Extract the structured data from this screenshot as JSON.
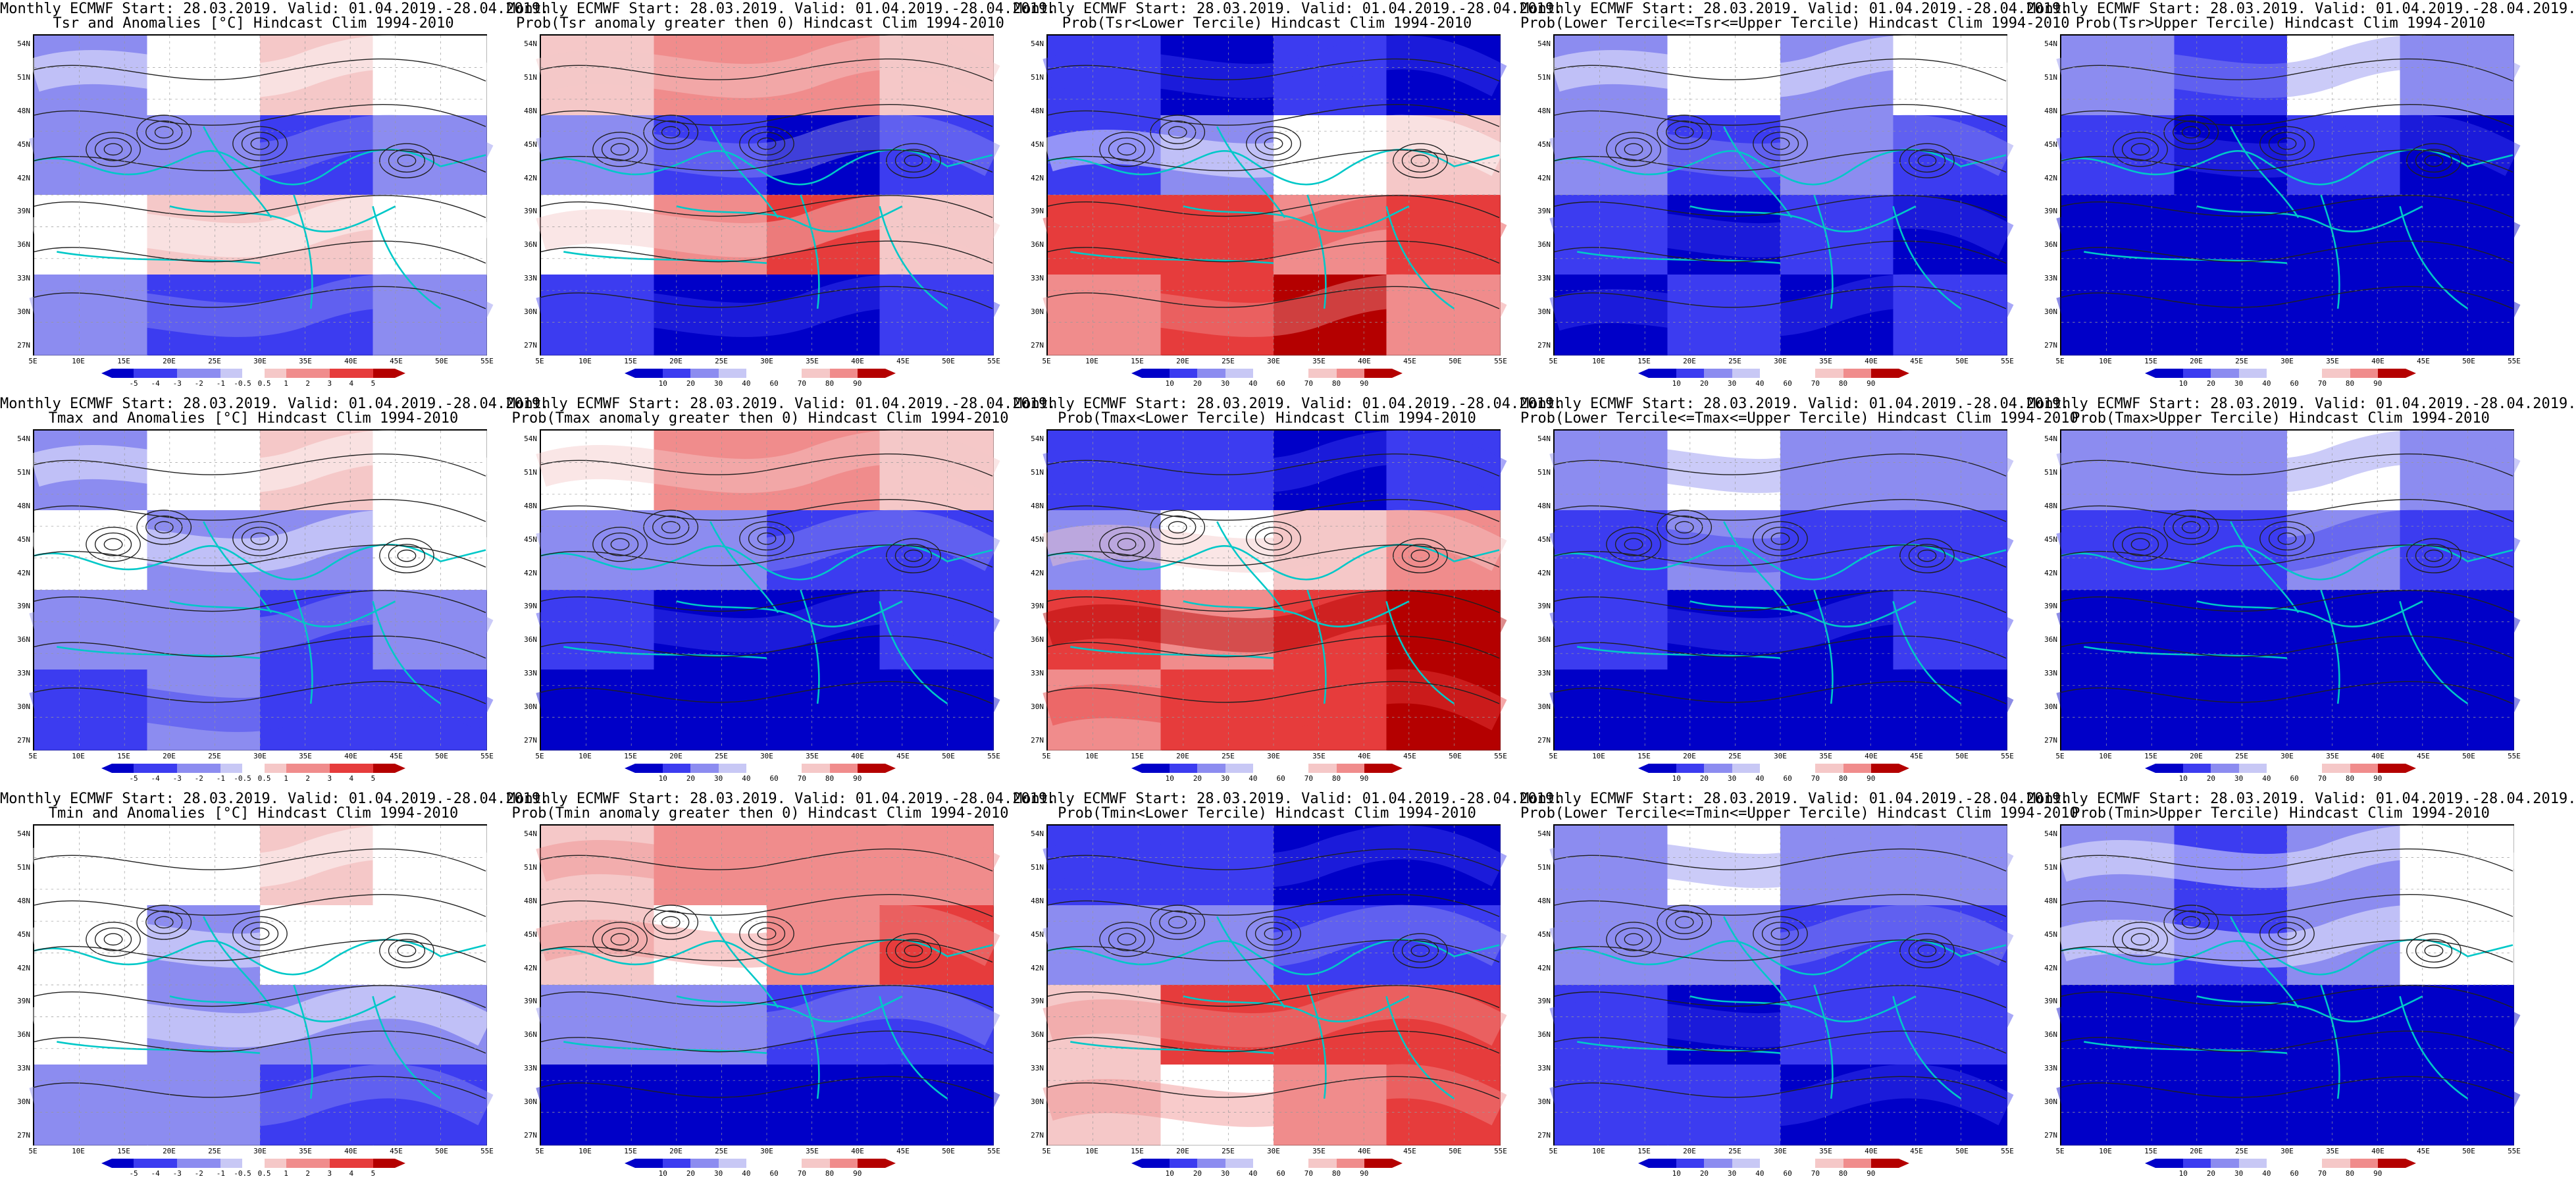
{
  "colors": {
    "deep_blue": "#0000c8",
    "mid_blue": "#3c3cf0",
    "light_blue": "#8c8cf0",
    "pale_blue": "#c8c8f5",
    "white": "#ffffff",
    "pale_red": "#f5c8c8",
    "light_red": "#f08c8c",
    "mid_red": "#e63c3c",
    "deep_red": "#b40000",
    "coast": "#00c8c8",
    "contour": "#202020"
  },
  "lat_labels": [
    "54N",
    "51N",
    "48N",
    "45N",
    "42N",
    "39N",
    "36N",
    "33N",
    "30N",
    "27N"
  ],
  "lon_labels": [
    "5E",
    "10E",
    "15E",
    "20E",
    "25E",
    "30E",
    "35E",
    "40E",
    "45E",
    "50E",
    "55E"
  ],
  "colorbar_anom": [
    "-5",
    "-4",
    "-3",
    "-2",
    "-1",
    "-0.5",
    "0.5",
    "1",
    "2",
    "3",
    "4",
    "5"
  ],
  "colorbar_prob": [
    "10",
    "20",
    "30",
    "40",
    "60",
    "70",
    "80",
    "90"
  ],
  "rows": [
    {
      "panels": [
        {
          "title1": "Monthly ECMWF Start: 28.03.2019. Valid: 01.04.2019.-28.04.2019.",
          "title2": "Tsr and Anomalies [°C] Hindcast Clim 1994-2010",
          "kind": "anom",
          "pattern": [
            -1,
            0,
            1,
            0,
            -1,
            -1,
            -2,
            -1,
            0,
            1,
            1,
            0,
            -1,
            -2,
            -2,
            -1
          ]
        },
        {
          "title1": "Monthly ECMWF Start: 28.03.2019. Valid: 01.04.2019.-28.04.2019.",
          "title2": "Prob(Tsr anomaly greater then 0) Hindcast Clim 1994-2010",
          "kind": "prob",
          "pattern": [
            1,
            2,
            2,
            1,
            -1,
            -2,
            -3,
            -2,
            0,
            2,
            3,
            1,
            -2,
            -3,
            -3,
            -2
          ]
        },
        {
          "title1": "Monthly ECMWF Start: 28.03.2019. Valid: 01.04.2019.-28.04.2019.",
          "title2": "Prob(Tsr<Lower Tercile) Hindcast Clim 1994-2010",
          "kind": "prob",
          "pattern": [
            -2,
            -3,
            -2,
            -3,
            -2,
            -1,
            0,
            1,
            3,
            3,
            2,
            3,
            2,
            3,
            4,
            2
          ]
        },
        {
          "title1": "Monthly ECMWF Start: 28.03.2019. Valid: 01.04.2019.-28.04.2019.",
          "title2": "Prob(Lower Tercile<=Tsr<=Upper Tercile) Hindcast Clim 1994-2010",
          "kind": "prob",
          "pattern": [
            -1,
            0,
            -1,
            0,
            -1,
            -2,
            -1,
            -2,
            -2,
            -3,
            -2,
            -3,
            -3,
            -2,
            -3,
            -2
          ]
        },
        {
          "title1": "Monthly ECMWF Start: 28.03.2019. Valid: 01.04.2019.-28.04.2019.",
          "title2": "Prob(Tsr>Upper Tercile) Hindcast Clim 1994-2010",
          "kind": "prob",
          "pattern": [
            -1,
            -2,
            0,
            -1,
            -2,
            -3,
            -2,
            -3,
            -3,
            -3,
            -3,
            -3,
            -3,
            -3,
            -3,
            -3
          ]
        }
      ]
    },
    {
      "panels": [
        {
          "title1": "Monthly ECMWF Start: 28.03.2019. Valid: 01.04.2019.-28.04.2019.",
          "title2": "Tmax and Anomalies [°C] Hindcast Clim 1994-2010",
          "kind": "anom",
          "pattern": [
            -1,
            0,
            1,
            0,
            0,
            -1,
            -1,
            0,
            -1,
            -1,
            -2,
            -1,
            -2,
            -1,
            -2,
            -2
          ]
        },
        {
          "title1": "Monthly ECMWF Start: 28.03.2019. Valid: 01.04.2019.-28.04.2019.",
          "title2": "Prob(Tmax anomaly greater then 0) Hindcast Clim 1994-2010",
          "kind": "prob",
          "pattern": [
            0,
            2,
            2,
            1,
            -1,
            -1,
            -2,
            -2,
            -2,
            -3,
            -3,
            -2,
            -3,
            -3,
            -3,
            -3
          ]
        },
        {
          "title1": "Monthly ECMWF Start: 28.03.2019. Valid: 01.04.2019.-28.04.2019.",
          "title2": "Prob(Tmax<Lower Tercile) Hindcast Clim 1994-2010",
          "kind": "prob",
          "pattern": [
            -2,
            -2,
            -3,
            -2,
            -1,
            0,
            1,
            2,
            3,
            2,
            3,
            4,
            2,
            3,
            3,
            4
          ]
        },
        {
          "title1": "Monthly ECMWF Start: 28.03.2019. Valid: 01.04.2019.-28.04.2019.",
          "title2": "Prob(Lower Tercile<=Tmax<=Upper Tercile) Hindcast Clim 1994-2010",
          "kind": "prob",
          "pattern": [
            -1,
            0,
            -1,
            -1,
            -2,
            -1,
            -2,
            -2,
            -2,
            -3,
            -3,
            -2,
            -3,
            -3,
            -3,
            -3
          ]
        },
        {
          "title1": "Monthly ECMWF Start: 28.03.2019. Valid: 01.04.2019.-28.04.2019.",
          "title2": "Prob(Tmax>Upper Tercile) Hindcast Clim 1994-2010",
          "kind": "prob",
          "pattern": [
            -1,
            -1,
            0,
            -1,
            -2,
            -2,
            -1,
            -2,
            -3,
            -3,
            -3,
            -3,
            -3,
            -3,
            -3,
            -3
          ]
        }
      ]
    },
    {
      "panels": [
        {
          "title1": "Monthly ECMWF Start: 28.03.2019. Valid: 01.04.2019.-28.04.2019.",
          "title2": "Tmin and Anomalies [°C] Hindcast Clim 1994-2010",
          "kind": "anom",
          "pattern": [
            0,
            0,
            1,
            0,
            0,
            -1,
            0,
            0,
            0,
            -1,
            -1,
            -1,
            -1,
            -1,
            -2,
            -2
          ]
        },
        {
          "title1": "Monthly ECMWF Start: 28.03.2019. Valid: 01.04.2019.-28.04.2019.",
          "title2": "Prob(Tmin anomaly greater then 0) Hindcast Clim 1994-2010",
          "kind": "prob",
          "pattern": [
            1,
            2,
            2,
            2,
            1,
            0,
            2,
            3,
            -1,
            -1,
            -2,
            -2,
            -3,
            -3,
            -3,
            -3
          ]
        },
        {
          "title1": "Monthly ECMWF Start: 28.03.2019. Valid: 01.04.2019.-28.04.2019.",
          "title2": "Prob(Tmin<Lower Tercile) Hindcast Clim 1994-2010",
          "kind": "prob",
          "pattern": [
            -2,
            -2,
            -3,
            -3,
            -1,
            -1,
            -2,
            -2,
            1,
            3,
            3,
            3,
            1,
            0,
            2,
            3
          ]
        },
        {
          "title1": "Monthly ECMWF Start: 28.03.2019. Valid: 01.04.2019.-28.04.2019.",
          "title2": "Prob(Lower Tercile<=Tmin<=Upper Tercile) Hindcast Clim 1994-2010",
          "kind": "prob",
          "pattern": [
            -1,
            0,
            -1,
            -1,
            -1,
            -1,
            -2,
            -2,
            -2,
            -3,
            -2,
            -2,
            -2,
            -2,
            -3,
            -3
          ]
        },
        {
          "title1": "Monthly ECMWF Start: 28.03.2019. Valid: 01.04.2019.-28.04.2019.",
          "title2": "Prob(Tmin>Upper Tercile) Hindcast Clim 1994-2010",
          "kind": "prob",
          "pattern": [
            -1,
            -2,
            -1,
            0,
            -1,
            -2,
            -1,
            0,
            -3,
            -3,
            -3,
            -3,
            -3,
            -3,
            -3,
            -3
          ]
        }
      ]
    }
  ]
}
